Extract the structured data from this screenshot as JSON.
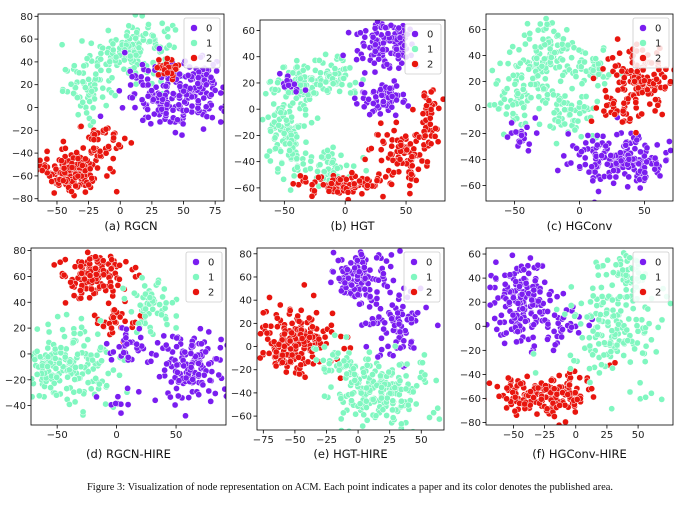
{
  "figure": {
    "caption": "Figure 3: Visualization of node representation on ACM. Each point indicates a paper and its color denotes the published area."
  },
  "colors": {
    "0": "#7a1df0",
    "1": "#80f7c0",
    "2": "#e8150e"
  },
  "chart_data": [
    {
      "type": "scatter",
      "title": "(a) RGCN",
      "xlim": [
        -65,
        82
      ],
      "ylim": [
        -82,
        82
      ],
      "xticks": [
        -50,
        -25,
        0,
        25,
        50,
        75
      ],
      "yticks": [
        -80,
        -60,
        -40,
        -20,
        0,
        20,
        40,
        60,
        80
      ],
      "legend": [
        "0",
        "1",
        "2"
      ],
      "legend_position": "top-right",
      "clusters": [
        {
          "cls": 1,
          "cx": 10,
          "cy": 50,
          "sx": 16,
          "sy": 14,
          "n": 150
        },
        {
          "cls": 1,
          "cx": -25,
          "cy": 15,
          "sx": 10,
          "sy": 12,
          "n": 60
        },
        {
          "cls": 0,
          "cx": 42,
          "cy": 10,
          "sx": 20,
          "sy": 14,
          "n": 170
        },
        {
          "cls": 0,
          "cx": 62,
          "cy": 20,
          "sx": 9,
          "sy": 10,
          "n": 60
        },
        {
          "cls": 2,
          "cx": -38,
          "cy": -55,
          "sx": 12,
          "sy": 9,
          "n": 170
        },
        {
          "cls": 2,
          "cx": -15,
          "cy": -30,
          "sx": 9,
          "sy": 9,
          "n": 40
        },
        {
          "cls": 2,
          "cx": 38,
          "cy": 35,
          "sx": 7,
          "sy": 5,
          "n": 25
        }
      ]
    },
    {
      "type": "scatter",
      "title": "(b) HGT",
      "xlim": [
        -70,
        82
      ],
      "ylim": [
        -70,
        68
      ],
      "xticks": [
        -50,
        0,
        50
      ],
      "yticks": [
        -60,
        -40,
        -20,
        0,
        20,
        40,
        60
      ],
      "legend": [
        "0",
        "1",
        "2"
      ],
      "legend_position": "top-right",
      "clusters": [
        {
          "cls": 1,
          "cx": -40,
          "cy": 20,
          "sx": 10,
          "sy": 8,
          "n": 80
        },
        {
          "cls": 1,
          "cx": -48,
          "cy": -20,
          "sx": 9,
          "sy": 16,
          "n": 110
        },
        {
          "cls": 1,
          "cx": -10,
          "cy": 25,
          "sx": 12,
          "sy": 8,
          "n": 60
        },
        {
          "cls": 1,
          "cx": -15,
          "cy": -45,
          "sx": 12,
          "sy": 8,
          "n": 50
        },
        {
          "cls": 0,
          "cx": 35,
          "cy": 50,
          "sx": 12,
          "sy": 9,
          "n": 120
        },
        {
          "cls": 0,
          "cx": 28,
          "cy": 8,
          "sx": 10,
          "sy": 6,
          "n": 60
        },
        {
          "cls": 0,
          "cx": -48,
          "cy": 20,
          "sx": 6,
          "sy": 4,
          "n": 15
        },
        {
          "cls": 2,
          "cx": 45,
          "cy": -35,
          "sx": 12,
          "sy": 10,
          "n": 90
        },
        {
          "cls": 2,
          "cx": 0,
          "cy": -58,
          "sx": 20,
          "sy": 4,
          "n": 90
        },
        {
          "cls": 2,
          "cx": 68,
          "cy": -5,
          "sx": 5,
          "sy": 10,
          "n": 40
        }
      ]
    },
    {
      "type": "scatter",
      "title": "(c) HGConv",
      "xlim": [
        -72,
        72
      ],
      "ylim": [
        -72,
        72
      ],
      "xticks": [
        -50,
        0,
        50
      ],
      "yticks": [
        -60,
        -40,
        -20,
        0,
        20,
        40,
        60
      ],
      "legend": [
        "0",
        "1",
        "2"
      ],
      "legend_position": "top-right",
      "clusters": [
        {
          "cls": 1,
          "cx": -25,
          "cy": 40,
          "sx": 12,
          "sy": 14,
          "n": 110
        },
        {
          "cls": 1,
          "cx": -50,
          "cy": 10,
          "sx": 8,
          "sy": 14,
          "n": 60
        },
        {
          "cls": 1,
          "cx": -10,
          "cy": -5,
          "sx": 12,
          "sy": 10,
          "n": 70
        },
        {
          "cls": 1,
          "cx": 10,
          "cy": 30,
          "sx": 10,
          "sy": 8,
          "n": 40
        },
        {
          "cls": 0,
          "cx": 30,
          "cy": -40,
          "sx": 18,
          "sy": 10,
          "n": 180
        },
        {
          "cls": 0,
          "cx": -45,
          "cy": -22,
          "sx": 6,
          "sy": 6,
          "n": 20
        },
        {
          "cls": 2,
          "cx": 45,
          "cy": 22,
          "sx": 12,
          "sy": 12,
          "n": 120
        },
        {
          "cls": 2,
          "cx": 28,
          "cy": 0,
          "sx": 8,
          "sy": 6,
          "n": 30
        }
      ]
    },
    {
      "type": "scatter",
      "title": "(d) RGCN-HIRE",
      "xlim": [
        -72,
        92
      ],
      "ylim": [
        -55,
        82
      ],
      "xticks": [
        -50,
        0,
        50
      ],
      "yticks": [
        -40,
        -20,
        0,
        20,
        40,
        60,
        80
      ],
      "legend": [
        "0",
        "1",
        "2"
      ],
      "legend_position": "top-right",
      "clusters": [
        {
          "cls": 2,
          "cx": -20,
          "cy": 60,
          "sx": 14,
          "sy": 9,
          "n": 130
        },
        {
          "cls": 2,
          "cx": 0,
          "cy": 25,
          "sx": 8,
          "sy": 7,
          "n": 30
        },
        {
          "cls": 1,
          "cx": -40,
          "cy": -10,
          "sx": 20,
          "sy": 16,
          "n": 180
        },
        {
          "cls": 1,
          "cx": 30,
          "cy": 35,
          "sx": 10,
          "sy": 10,
          "n": 60
        },
        {
          "cls": 0,
          "cx": 60,
          "cy": -10,
          "sx": 14,
          "sy": 14,
          "n": 130
        },
        {
          "cls": 0,
          "cx": 10,
          "cy": 5,
          "sx": 8,
          "sy": 8,
          "n": 30
        },
        {
          "cls": 0,
          "cx": 0,
          "cy": -40,
          "sx": 8,
          "sy": 5,
          "n": 10
        }
      ]
    },
    {
      "type": "scatter",
      "title": "(e) HGT-HIRE",
      "xlim": [
        -80,
        68
      ],
      "ylim": [
        -72,
        85
      ],
      "xticks": [
        -75,
        -50,
        -25,
        0,
        25,
        50
      ],
      "yticks": [
        -60,
        -40,
        -20,
        0,
        20,
        40,
        60,
        80
      ],
      "legend": [
        "0",
        "1",
        "2"
      ],
      "legend_position": "top-right",
      "clusters": [
        {
          "cls": 2,
          "cx": -50,
          "cy": 5,
          "sx": 15,
          "sy": 15,
          "n": 200
        },
        {
          "cls": 0,
          "cx": 0,
          "cy": 60,
          "sx": 12,
          "sy": 12,
          "n": 120
        },
        {
          "cls": 0,
          "cx": 30,
          "cy": 20,
          "sx": 12,
          "sy": 16,
          "n": 80
        },
        {
          "cls": 1,
          "cx": 15,
          "cy": -40,
          "sx": 20,
          "sy": 15,
          "n": 200
        },
        {
          "cls": 1,
          "cx": -15,
          "cy": -15,
          "sx": 10,
          "sy": 10,
          "n": 40
        }
      ]
    },
    {
      "type": "scatter",
      "title": "(f) HGConv-HIRE",
      "xlim": [
        -72,
        78
      ],
      "ylim": [
        -82,
        65
      ],
      "xticks": [
        -50,
        -25,
        0,
        25,
        50
      ],
      "yticks": [
        -80,
        -60,
        -40,
        -20,
        0,
        20,
        40,
        60
      ],
      "legend": [
        "0",
        "1",
        "2"
      ],
      "legend_position": "top-right",
      "clusters": [
        {
          "cls": 0,
          "cx": -45,
          "cy": 20,
          "sx": 12,
          "sy": 18,
          "n": 170
        },
        {
          "cls": 0,
          "cx": -10,
          "cy": 5,
          "sx": 10,
          "sy": 8,
          "n": 30
        },
        {
          "cls": 2,
          "cx": -25,
          "cy": -55,
          "sx": 20,
          "sy": 9,
          "n": 170
        },
        {
          "cls": 1,
          "cx": 30,
          "cy": 0,
          "sx": 18,
          "sy": 25,
          "n": 170
        },
        {
          "cls": 1,
          "cx": 40,
          "cy": 45,
          "sx": 10,
          "sy": 8,
          "n": 40
        }
      ]
    }
  ]
}
